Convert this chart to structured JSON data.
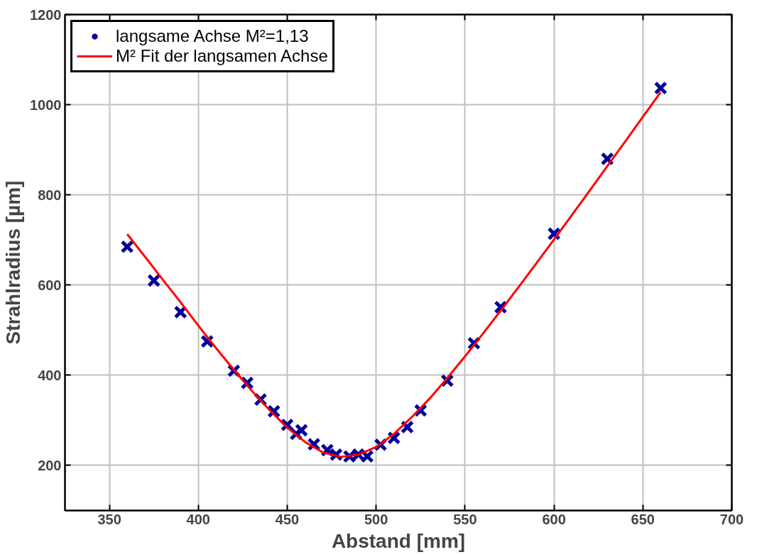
{
  "chart_data": {
    "type": "scatter",
    "xlabel": "Abstand [mm]",
    "ylabel": "Strahlradius [µm]",
    "xlim": [
      325,
      700
    ],
    "xticks": [
      350,
      400,
      450,
      500,
      550,
      600,
      650,
      700
    ],
    "ylim": [
      100,
      1200
    ],
    "yticks": [
      200,
      400,
      600,
      800,
      1000,
      1200
    ],
    "grid": true,
    "legend": "top left",
    "series": [
      {
        "name": "langsame Achse M²=1,13",
        "marker": "cross",
        "color": "#000099",
        "x": [
          360,
          375,
          390,
          405,
          420,
          427.5,
          435,
          442.5,
          450,
          455,
          458,
          465,
          472.5,
          477.5,
          485,
          490,
          495,
          502.5,
          510,
          517.5,
          525,
          540,
          555,
          570,
          600,
          630,
          660
        ],
        "values": [
          685,
          610,
          540,
          475,
          410,
          383,
          346,
          320,
          290,
          270,
          278,
          247,
          234,
          224,
          220,
          224,
          220,
          246,
          261,
          285,
          322,
          388,
          471,
          551,
          714,
          880,
          1037
        ]
      },
      {
        "name": "M² Fit der langsamen Achse",
        "type": "line",
        "line_style": "solid",
        "color": "#ff0000",
        "x": [
          360,
          370,
          380,
          390,
          400,
          410,
          420,
          430,
          440,
          450,
          460,
          470,
          480,
          490,
          500,
          510,
          520,
          530,
          540,
          550,
          560,
          570,
          580,
          590,
          600,
          610,
          620,
          630,
          640,
          650,
          660
        ],
        "values": [
          713,
          663,
          612,
          562,
          510,
          460,
          412,
          366,
          323,
          284,
          252,
          229,
          219,
          224,
          241,
          270,
          307,
          348,
          394,
          442,
          492,
          543,
          595,
          648,
          701,
          755,
          809,
          864,
          918,
          973,
          1028
        ]
      }
    ]
  }
}
